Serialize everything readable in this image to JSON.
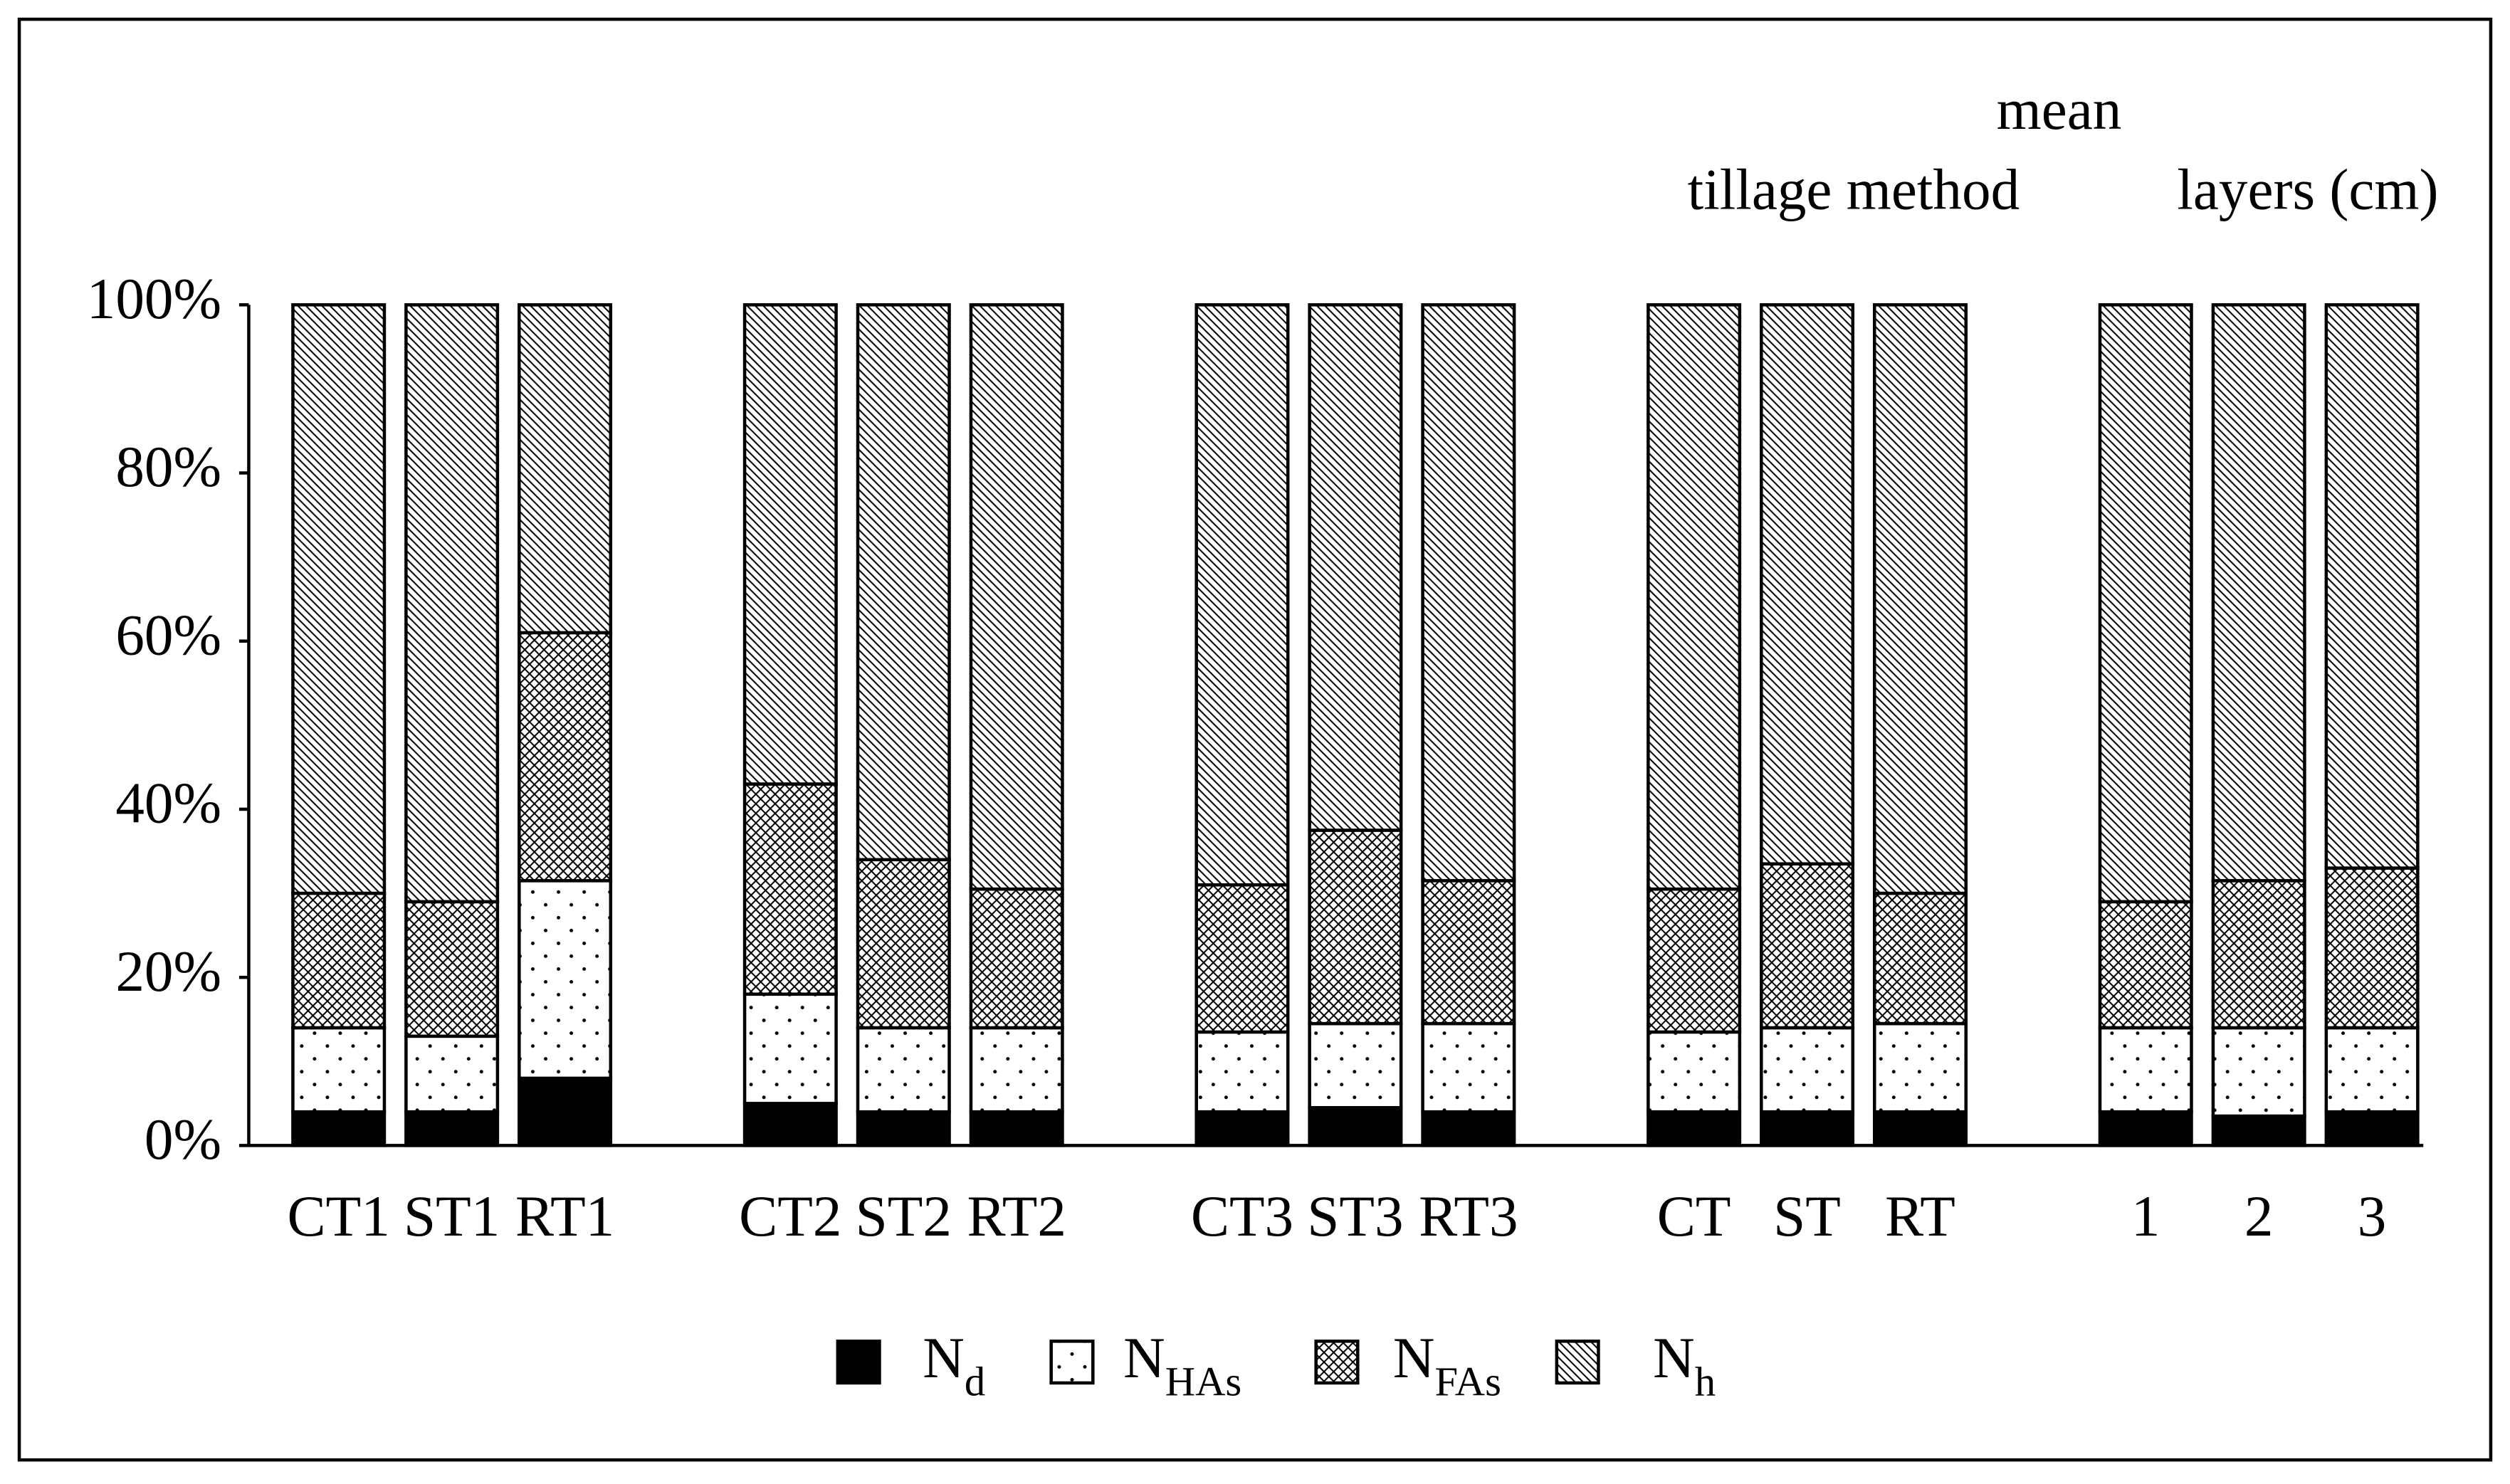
{
  "chart_data": {
    "type": "stacked_bar",
    "annotations": [
      "mean",
      "tillage method",
      "layers (cm)"
    ],
    "categories": [
      "CT1",
      "ST1",
      "RT1",
      "CT2",
      "ST2",
      "RT2",
      "CT3",
      "ST3",
      "RT3",
      "CT",
      "ST",
      "RT",
      "1",
      "2",
      "3"
    ],
    "series": [
      {
        "name": "Nd",
        "color": "#000000",
        "pattern": "solid",
        "values": [
          4,
          4,
          8,
          5,
          4,
          4,
          4,
          4.5,
          4,
          4,
          4,
          4,
          4,
          3.5,
          4
        ]
      },
      {
        "name": "NHAs",
        "color": "#ffffff",
        "pattern": "dots",
        "values": [
          10,
          9,
          23.5,
          13,
          10,
          10,
          9.5,
          10,
          10.5,
          9.5,
          10,
          10.5,
          10,
          10.5,
          10
        ]
      },
      {
        "name": "NFAs",
        "color": "#ffffff",
        "pattern": "crosshatch",
        "values": [
          16,
          16,
          29.5,
          25,
          20,
          16.5,
          17.5,
          23,
          17,
          17,
          19.5,
          15.5,
          15,
          17.5,
          19
        ]
      },
      {
        "name": "Nh",
        "color": "#ffffff",
        "pattern": "diagonal",
        "values": [
          70,
          71,
          39,
          57,
          66,
          69.5,
          69,
          62.5,
          68.5,
          69.5,
          66.5,
          70,
          71,
          68.5,
          67
        ]
      }
    ],
    "ylim": [
      0,
      100
    ],
    "yticks": [
      {
        "value": 0,
        "label": "0%"
      },
      {
        "value": 20,
        "label": "20%"
      },
      {
        "value": 40,
        "label": "40%"
      },
      {
        "value": 60,
        "label": "60%"
      },
      {
        "value": 80,
        "label": "80%"
      },
      {
        "value": 100,
        "label": "100%"
      }
    ],
    "grid": false,
    "legend": "bottom"
  }
}
